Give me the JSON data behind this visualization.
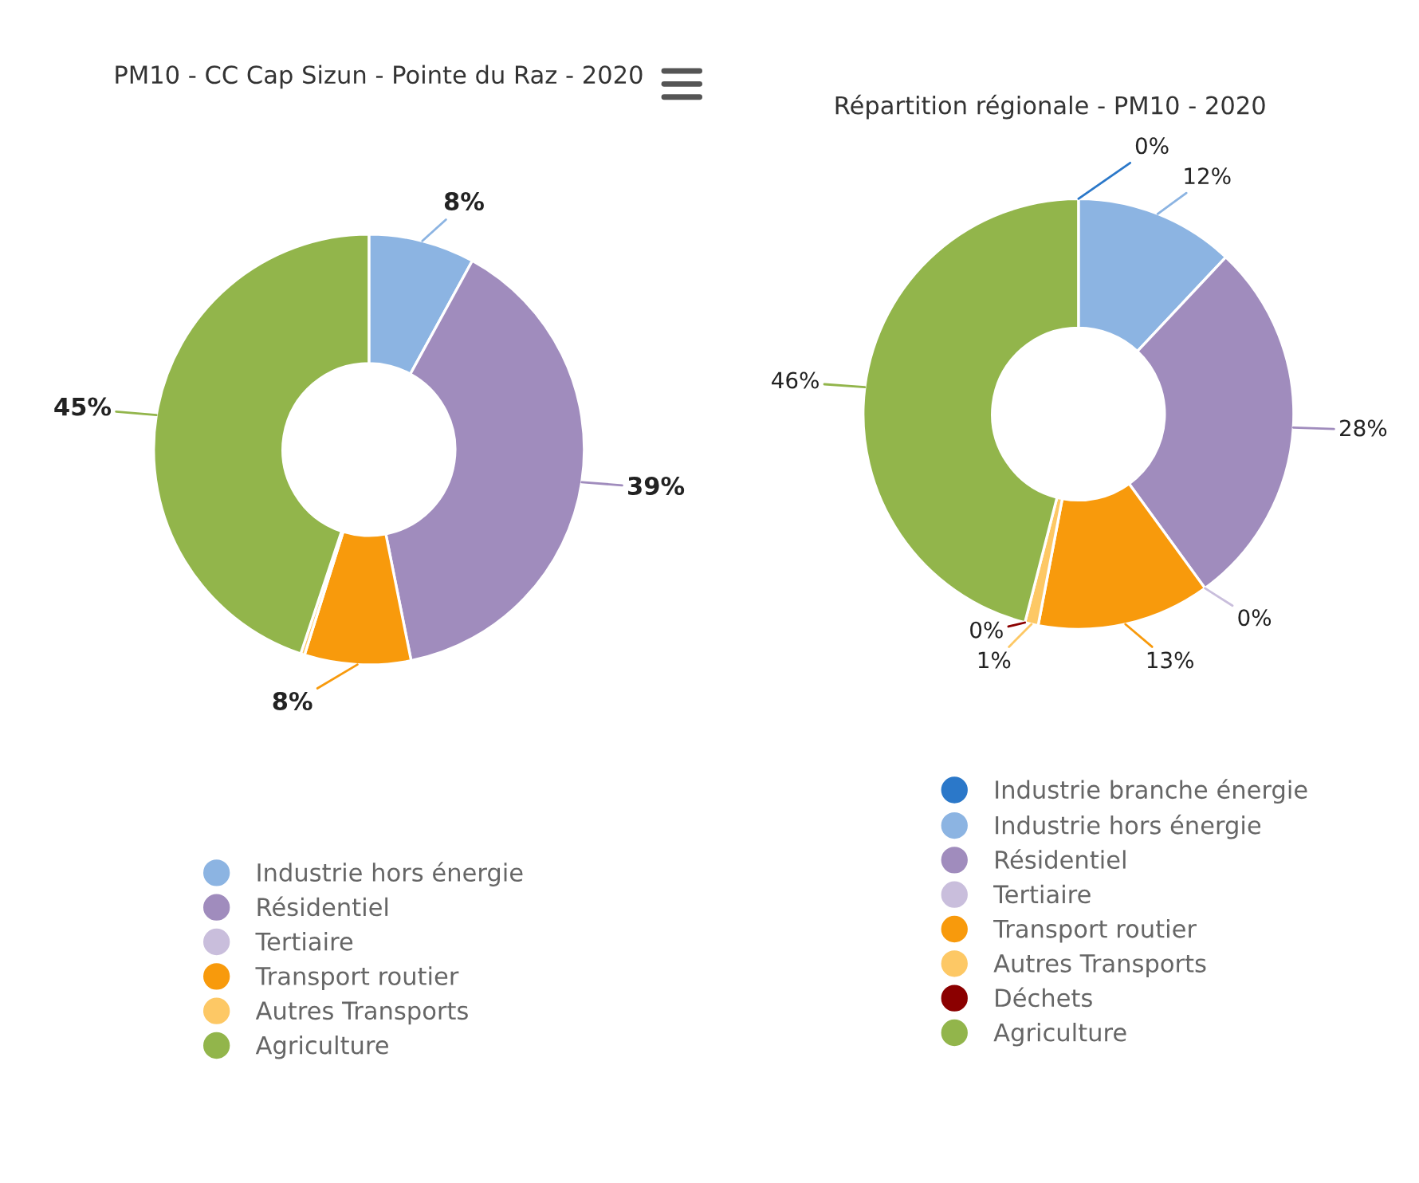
{
  "chart_data": [
    {
      "type": "donut",
      "title": "PM10 - CC Cap Sizun - Pointe du Raz - 2020",
      "legend": "bottom",
      "categories": [
        "Industrie hors énergie",
        "Résidentiel",
        "Tertiaire",
        "Transport routier",
        "Autres Transports",
        "Agriculture"
      ],
      "values": [
        8,
        39,
        null,
        8,
        0.3,
        45
      ],
      "value_labels": [
        "8%",
        "39%",
        null,
        "8%",
        null,
        "45%"
      ],
      "colors": [
        "#8cb4e2",
        "#a08cbd",
        "#c9bedc",
        "#f89a0c",
        "#fdc865",
        "#92b54b"
      ]
    },
    {
      "type": "donut",
      "title": "Répartition régionale - PM10 - 2020",
      "legend": "bottom",
      "categories": [
        "Industrie branche énergie",
        "Industrie hors énergie",
        "Résidentiel",
        "Tertiaire",
        "Transport routier",
        "Autres Transports",
        "Déchets",
        "Agriculture"
      ],
      "values": [
        0,
        12,
        28,
        0,
        13,
        1,
        0,
        46
      ],
      "value_labels": [
        "0%",
        "12%",
        "28%",
        "0%",
        "13%",
        "1%",
        "0%",
        "46%"
      ],
      "colors": [
        "#2b78c9",
        "#8cb4e2",
        "#a08cbd",
        "#c9bedc",
        "#f89a0c",
        "#fdc865",
        "#8b0000",
        "#92b54b"
      ]
    }
  ]
}
